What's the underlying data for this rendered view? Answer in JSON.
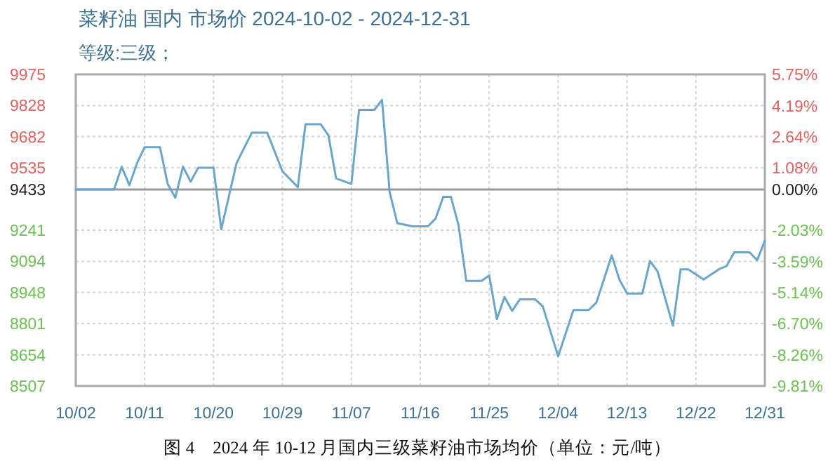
{
  "chart_data": {
    "type": "line",
    "title": "菜籽油 国内 市场价 2024-10-02 - 2024-12-31",
    "subtitle": "等级:三级；",
    "annotations": [
      "图 4　2024 年 10-12 月国内三级菜籽油市场均价（单位：元/吨）"
    ],
    "x": [
      "--10-02",
      "--10-07",
      "--10-08",
      "--10-09",
      "--10-10",
      "--10-11",
      "--10-13",
      "--10-14",
      "--10-15",
      "--10-16",
      "--10-17",
      "--10-18",
      "--10-20",
      "--10-21",
      "--10-23",
      "--10-25",
      "--10-27",
      "--10-29",
      "--10-31",
      "--11-01",
      "--11-03",
      "--11-04",
      "--11-05",
      "--11-07",
      "--11-08",
      "--11-10",
      "--11-11",
      "--11-12",
      "--11-13",
      "--11-15",
      "--11-17",
      "--11-18",
      "--11-19",
      "--11-20",
      "--11-21",
      "--11-22",
      "--11-24",
      "--11-25",
      "--11-26",
      "--11-27",
      "--11-28",
      "--11-29",
      "--12-01",
      "--12-02",
      "--12-04",
      "--12-06",
      "--12-08",
      "--12-09",
      "--12-11",
      "--12-12",
      "--12-13",
      "--12-15",
      "--12-16",
      "--12-17",
      "--12-19",
      "--12-20",
      "--12-21",
      "--12-23",
      "--12-25",
      "--12-26",
      "--12-27",
      "--12-29",
      "--12-30",
      "--12-31"
    ],
    "series": [
      {
        "color": "#6aa6cc",
        "values": [
          9433,
          9433,
          9540,
          9453,
          9557,
          9632,
          9632,
          9459,
          9394,
          9540,
          9470,
          9535,
          9535,
          9245,
          9557,
          9701,
          9701,
          9518,
          9444,
          9740,
          9740,
          9688,
          9485,
          9459,
          9808,
          9808,
          9855,
          9420,
          9274,
          9259,
          9259,
          9296,
          9398,
          9398,
          9263,
          9002,
          9002,
          9028,
          8822,
          8926,
          8861,
          8915,
          8915,
          8882,
          8647,
          8865,
          8865,
          8900,
          9122,
          9009,
          8943,
          8943,
          9096,
          9046,
          8791,
          9057,
          9057,
          9009,
          9057,
          9072,
          9137,
          9137,
          9100,
          9191
        ]
      }
    ],
    "xlim": [
      "--10-02",
      "--12-31"
    ],
    "xticks": [
      {
        "value": "--10-02",
        "label": "10/02"
      },
      {
        "value": "--10-11",
        "label": "10/11"
      },
      {
        "value": "--10-20",
        "label": "10/20"
      },
      {
        "value": "--10-29",
        "label": "10/29"
      },
      {
        "value": "--11-07",
        "label": "11/07"
      },
      {
        "value": "--11-16",
        "label": "11/16"
      },
      {
        "value": "--11-25",
        "label": "11/25"
      },
      {
        "value": "--12-04",
        "label": "12/04"
      },
      {
        "value": "--12-13",
        "label": "12/13"
      },
      {
        "value": "--12-22",
        "label": "12/22"
      },
      {
        "value": "--12-31",
        "label": "12/31"
      }
    ],
    "ylim": [
      8507,
      9975
    ],
    "yticks": [
      8507,
      8654,
      8801,
      8948,
      9094,
      9241,
      9433,
      9535,
      9682,
      9828,
      9975
    ],
    "y2lim": [
      -9.81,
      5.75
    ],
    "y2ticks": [
      {
        "value": -9.81,
        "label": "-9.81%"
      },
      {
        "value": -8.26,
        "label": "-8.26%"
      },
      {
        "value": -6.7,
        "label": "-6.70%"
      },
      {
        "value": -5.14,
        "label": "-5.14%"
      },
      {
        "value": -3.59,
        "label": "-3.59%"
      },
      {
        "value": -2.03,
        "label": "-2.03%"
      },
      {
        "value": 0,
        "label": "0.00%"
      },
      {
        "value": 1.08,
        "label": "1.08%"
      },
      {
        "value": 2.64,
        "label": "2.64%"
      },
      {
        "value": 4.19,
        "label": "4.19%"
      },
      {
        "value": 5.75,
        "label": "5.75%"
      }
    ],
    "ref_lines": [
      {
        "axis": "y",
        "value": 9433,
        "color": "#999999"
      }
    ],
    "grid": true,
    "marker": "none",
    "line_style": "solid"
  }
}
